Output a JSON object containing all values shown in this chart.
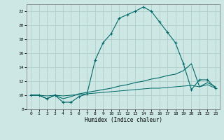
{
  "xlabel": "Humidex (Indice chaleur)",
  "xlim": [
    -0.5,
    23.5
  ],
  "ylim": [
    8,
    23
  ],
  "xticks": [
    0,
    1,
    2,
    3,
    4,
    5,
    6,
    7,
    8,
    9,
    10,
    11,
    12,
    13,
    14,
    15,
    16,
    17,
    18,
    19,
    20,
    21,
    22,
    23
  ],
  "yticks": [
    8,
    10,
    12,
    14,
    16,
    18,
    20,
    22
  ],
  "bg_color": "#cde8e4",
  "grid_color": "#b0d0cc",
  "line_color": "#006868",
  "line1_x": [
    0,
    1,
    2,
    3,
    4,
    5,
    6,
    7,
    8,
    9,
    10,
    11,
    12,
    13,
    14,
    15,
    16,
    17,
    18,
    19,
    20,
    21,
    22,
    23
  ],
  "line1_y": [
    10.0,
    10.0,
    9.5,
    10.0,
    9.0,
    9.0,
    9.8,
    10.2,
    15.0,
    17.5,
    18.8,
    21.0,
    21.5,
    22.0,
    22.6,
    22.0,
    20.5,
    19.0,
    17.5,
    14.5,
    10.8,
    12.2,
    12.2,
    11.0
  ],
  "line2_x": [
    0,
    1,
    2,
    3,
    4,
    5,
    6,
    7,
    8,
    9,
    10,
    11,
    12,
    13,
    14,
    15,
    16,
    17,
    18,
    19,
    20,
    21,
    22,
    23
  ],
  "line2_y": [
    10.0,
    10.0,
    9.5,
    10.0,
    9.5,
    9.8,
    10.2,
    10.4,
    10.6,
    10.8,
    11.0,
    11.3,
    11.5,
    11.8,
    12.0,
    12.3,
    12.5,
    12.8,
    13.0,
    13.5,
    14.5,
    11.2,
    11.8,
    11.2
  ],
  "line3_x": [
    0,
    1,
    2,
    3,
    4,
    5,
    6,
    7,
    8,
    9,
    10,
    11,
    12,
    13,
    14,
    15,
    16,
    17,
    18,
    19,
    20,
    21,
    22,
    23
  ],
  "line3_y": [
    10.0,
    10.0,
    9.9,
    10.0,
    9.9,
    10.0,
    10.1,
    10.2,
    10.3,
    10.4,
    10.5,
    10.6,
    10.7,
    10.8,
    10.9,
    11.0,
    11.0,
    11.1,
    11.2,
    11.3,
    11.4,
    11.2,
    11.5,
    11.0
  ]
}
